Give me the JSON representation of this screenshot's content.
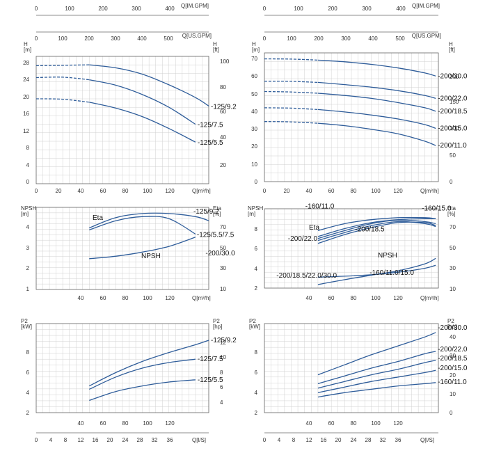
{
  "colors": {
    "curve": "#2f5d9a",
    "grid": "#d0d0d0",
    "axis": "#666666",
    "text": "#333333"
  },
  "left": {
    "top_axes": [
      {
        "label": "Q[IM.GPM]",
        "ticks": [
          "0",
          "100",
          "200",
          "300",
          "400"
        ]
      },
      {
        "label": "Q[US.GPM]",
        "ticks": [
          "0",
          "100",
          "200",
          "300",
          "400",
          "500"
        ]
      }
    ],
    "h": {
      "ylabel": "H\n[m]",
      "y2label": "H\n[ft]",
      "yticks": [
        "0",
        "4",
        "8",
        "12",
        "16",
        "20",
        "24",
        "28"
      ],
      "y2ticks": [
        "20",
        "40",
        "60",
        "80",
        "100"
      ],
      "xticks": [
        "0",
        "20",
        "40",
        "60",
        "80",
        "100",
        "120"
      ],
      "xlabel": "Q[m³/h]"
    },
    "npsh": {
      "ylabel": "NPSH\n[m]",
      "y2label": "Eta\n[%]",
      "yticks": [
        "1",
        "2",
        "3",
        "4"
      ],
      "y2ticks": [
        "10",
        "30",
        "50",
        "70"
      ],
      "xticks": [
        "40",
        "60",
        "80",
        "100",
        "120"
      ],
      "xlabel": "Q[m³/h]"
    },
    "p2": {
      "ylabel": "P2\n[kW]",
      "y2label": "P2\n[hp]",
      "yticks": [
        "2",
        "4",
        "6",
        "8"
      ],
      "y2ticks": [
        "4",
        "6",
        "8",
        "10",
        "12"
      ],
      "xticks": [
        "40",
        "60",
        "80",
        "100",
        "120"
      ],
      "bottom_ticks": [
        "0",
        "4",
        "8",
        "12",
        "16",
        "20",
        "24",
        "28",
        "32",
        "36"
      ],
      "bottom_label": "Q[l/S]"
    }
  },
  "right": {
    "top_axes": [
      {
        "label": "Q[IM.GPM]",
        "ticks": [
          "0",
          "100",
          "200",
          "300",
          "400"
        ]
      },
      {
        "label": "Q[US.GPM]",
        "ticks": [
          "0",
          "100",
          "200",
          "300",
          "400",
          "500"
        ]
      }
    ],
    "h": {
      "ylabel": "H\n[m]",
      "y2label": "H\n[ft]",
      "yticks": [
        "0",
        "10",
        "20",
        "30",
        "40",
        "50",
        "60",
        "70"
      ],
      "y2ticks": [
        "0",
        "50",
        "100",
        "150",
        "200"
      ],
      "xticks": [
        "0",
        "20",
        "40",
        "60",
        "80",
        "100",
        "120"
      ],
      "xlabel": "Q[m³/h]"
    },
    "npsh": {
      "ylabel": "NPSH\n[m]",
      "y2label": "Eta\n[%]",
      "yticks": [
        "2",
        "4",
        "6",
        "8"
      ],
      "y2ticks": [
        "10",
        "30",
        "50",
        "70"
      ],
      "xticks": [
        "40",
        "60",
        "80",
        "100",
        "120"
      ],
      "xlabel": "Q[m³/h]"
    },
    "p2": {
      "ylabel": "P2\n[kW]",
      "y2label": "P2\n[hp]",
      "yticks": [
        "2",
        "4",
        "6",
        "8"
      ],
      "y2ticks": [
        "0",
        "10",
        "20",
        "30",
        "40"
      ],
      "xticks": [
        "40",
        "60",
        "80",
        "100",
        "120"
      ],
      "bottom_ticks": [
        "0",
        "4",
        "8",
        "12",
        "16",
        "20",
        "24",
        "28",
        "32",
        "36"
      ],
      "bottom_label": "Q[l/S]"
    }
  },
  "chart_data": [
    {
      "type": "line",
      "panel": "left-h",
      "xlim": [
        0,
        130
      ],
      "ylim": [
        0,
        30
      ],
      "series": [
        {
          "name": "-125/9.2",
          "x": [
            0,
            20,
            40,
            60,
            80,
            100,
            120,
            130
          ],
          "y": [
            27.8,
            27.9,
            28,
            27.3,
            25.8,
            23.3,
            20.3,
            18.3
          ]
        },
        {
          "name": "-125/7.5",
          "x": [
            0,
            20,
            40,
            60,
            80,
            100,
            120
          ],
          "y": [
            25,
            25.1,
            24.5,
            23.2,
            21,
            18,
            14
          ]
        },
        {
          "name": "-125/5.5",
          "x": [
            0,
            20,
            40,
            60,
            80,
            100,
            120
          ],
          "y": [
            20,
            19.9,
            19.2,
            17.8,
            15.8,
            13,
            9.8
          ]
        }
      ]
    },
    {
      "type": "line",
      "panel": "left-npsh",
      "xlim": [
        0,
        130
      ],
      "ylim": [
        1,
        5
      ],
      "series": [
        {
          "name": "Eta -125/9.2",
          "x": [
            40,
            60,
            80,
            100,
            120,
            130
          ],
          "y": [
            4,
            4.5,
            4.7,
            4.7,
            4.55,
            4.35
          ]
        },
        {
          "name": "Eta -125/5.5/7.5",
          "x": [
            40,
            60,
            80,
            100,
            120
          ],
          "y": [
            3.9,
            4.35,
            4.55,
            4.45,
            3.7
          ]
        },
        {
          "name": "NPSH",
          "x": [
            40,
            60,
            80,
            100,
            120
          ],
          "y": [
            2.5,
            2.62,
            2.82,
            3.1,
            3.55
          ]
        }
      ]
    },
    {
      "type": "line",
      "panel": "left-p2",
      "xlim": [
        0,
        130
      ],
      "ylim": [
        2,
        10
      ],
      "series": [
        {
          "name": "-125/9.2",
          "x": [
            40,
            60,
            80,
            100,
            120,
            130
          ],
          "y": [
            4.4,
            5.6,
            6.6,
            7.4,
            8.1,
            8.5
          ]
        },
        {
          "name": "-125/7.5",
          "x": [
            40,
            60,
            80,
            100,
            120
          ],
          "y": [
            4.1,
            5.2,
            6,
            6.5,
            6.8
          ]
        },
        {
          "name": "-125/5.5",
          "x": [
            40,
            60,
            80,
            100,
            120
          ],
          "y": [
            3.1,
            3.9,
            4.4,
            4.75,
            4.95
          ]
        }
      ]
    },
    {
      "type": "line",
      "panel": "right-h",
      "xlim": [
        0,
        130
      ],
      "ylim": [
        0,
        75
      ],
      "series": [
        {
          "name": "-200/30.0",
          "x": [
            0,
            20,
            40,
            60,
            80,
            100,
            120,
            128
          ],
          "y": [
            71.5,
            71.4,
            70.8,
            69.8,
            68.3,
            66.2,
            63.3,
            61.5
          ]
        },
        {
          "name": "-200/22.0",
          "x": [
            0,
            20,
            40,
            60,
            80,
            100,
            120,
            128
          ],
          "y": [
            58.5,
            58.4,
            57.8,
            56.5,
            55,
            53,
            50.2,
            48.5
          ]
        },
        {
          "name": "-200/18.5",
          "x": [
            0,
            20,
            40,
            60,
            80,
            100,
            120,
            128
          ],
          "y": [
            52.5,
            52.2,
            51.5,
            50.2,
            48.5,
            46,
            43,
            41
          ]
        },
        {
          "name": "-200/15.0",
          "x": [
            0,
            20,
            40,
            60,
            80,
            100,
            120,
            128
          ],
          "y": [
            43,
            42.8,
            42,
            40.6,
            38.8,
            36.5,
            33.2,
            31
          ]
        },
        {
          "name": "-200/11.0",
          "x": [
            0,
            20,
            40,
            60,
            80,
            100,
            120,
            128
          ],
          "y": [
            35,
            34.8,
            34,
            32.6,
            30.5,
            27.8,
            23.5,
            21
          ]
        }
      ]
    },
    {
      "type": "line",
      "panel": "right-npsh",
      "xlim": [
        0,
        130
      ],
      "ylim": [
        2,
        10
      ],
      "series": [
        {
          "name": "-160/11.0",
          "x": [
            40,
            60,
            80,
            100,
            120,
            128
          ],
          "y": [
            7.8,
            8.5,
            8.9,
            9.1,
            9.1,
            9
          ]
        },
        {
          "name": "-160/15.0",
          "x": [
            40,
            60,
            80,
            100,
            120,
            128
          ],
          "y": [
            7.2,
            8,
            8.6,
            8.9,
            9,
            9
          ]
        },
        {
          "name": "-200/18.5",
          "x": [
            40,
            60,
            80,
            100,
            120,
            128
          ],
          "y": [
            7,
            7.8,
            8.5,
            8.85,
            8.7,
            8.5
          ]
        },
        {
          "name": "-200/22.0",
          "x": [
            40,
            60,
            80,
            100,
            120,
            128
          ],
          "y": [
            6.8,
            7.6,
            8.3,
            8.7,
            8.5,
            8.2
          ]
        },
        {
          "name": "-200/30.0",
          "x": [
            40,
            60,
            80,
            100,
            120,
            128
          ],
          "y": [
            6.5,
            7.4,
            8.1,
            8.6,
            8.6,
            8.3
          ]
        },
        {
          "name": "NPSH -200/18.5/22.0/30.0",
          "x": [
            40,
            60,
            80,
            100,
            120,
            128
          ],
          "y": [
            2.35,
            2.85,
            3.3,
            3.75,
            4.45,
            5
          ]
        },
        {
          "name": "NPSH -160/11.0/15.0",
          "x": [
            40,
            60,
            80,
            100,
            120,
            128
          ],
          "y": [
            3.1,
            3.2,
            3.35,
            3.6,
            4,
            4.3
          ]
        }
      ]
    },
    {
      "type": "line",
      "panel": "right-p2",
      "xlim": [
        0,
        130
      ],
      "ylim": [
        2,
        10
      ],
      "series": [
        {
          "name": "-200/30.0",
          "x": [
            40,
            60,
            80,
            100,
            120,
            128
          ],
          "y": [
            5.4,
            6.3,
            7.2,
            8,
            8.8,
            9.2
          ]
        },
        {
          "name": "-200/22.0",
          "x": [
            40,
            60,
            80,
            100,
            120,
            128
          ],
          "y": [
            4.6,
            5.3,
            6,
            6.6,
            7.3,
            7.5
          ]
        },
        {
          "name": "-200/18.5",
          "x": [
            40,
            60,
            80,
            100,
            120,
            128
          ],
          "y": [
            4.2,
            4.8,
            5.4,
            5.9,
            6.5,
            6.7
          ]
        },
        {
          "name": "-200/15.0",
          "x": [
            40,
            60,
            80,
            100,
            120,
            128
          ],
          "y": [
            3.8,
            4.3,
            4.8,
            5.2,
            5.6,
            5.8
          ]
        },
        {
          "name": "-160/11.0",
          "x": [
            40,
            60,
            80,
            100,
            120,
            128
          ],
          "y": [
            3.4,
            3.8,
            4.1,
            4.4,
            4.6,
            4.7
          ]
        }
      ]
    }
  ]
}
